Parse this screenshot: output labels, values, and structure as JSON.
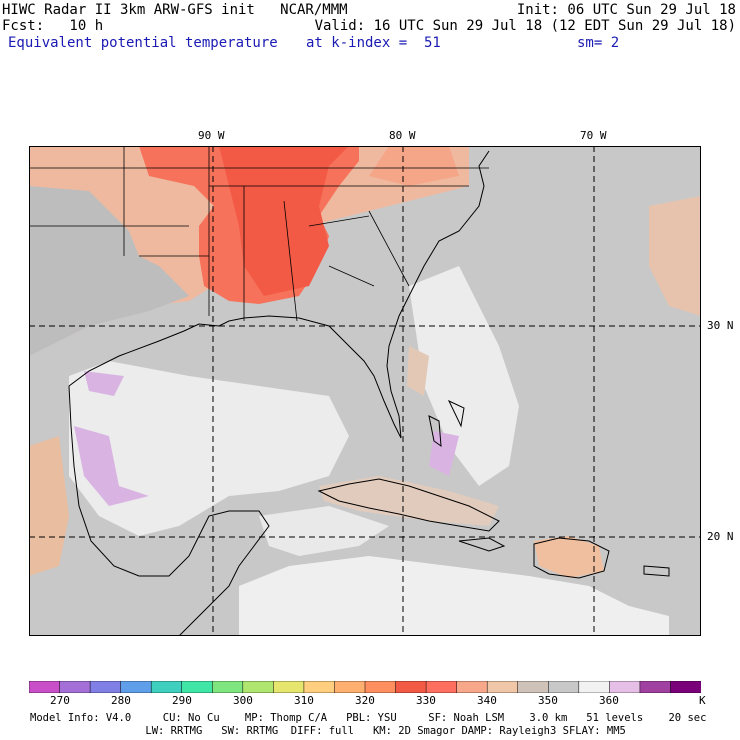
{
  "header": {
    "line1_left": "HIWC Radar II 3km ARW-GFS init   NCAR/MMM",
    "line1_right": "Init: 06 UTC Sun 29 Jul 18",
    "line2_left": "Fcst:   10 h",
    "line2_right": "Valid: 16 UTC Sun 29 Jul 18 (12 EDT Sun 29 Jul 18)",
    "line3_left": "Equivalent potential temperature",
    "line3_mid": "at k-index =  51",
    "line3_right": "sm= 2"
  },
  "map": {
    "lon_labels": [
      "90 W",
      "80 W",
      "70 W"
    ],
    "lat_labels": [
      "30 N",
      "20 N"
    ]
  },
  "colorbar": {
    "colors": [
      "#c94fc9",
      "#a46fd6",
      "#7f7fe6",
      "#5f9fea",
      "#3fcfbf",
      "#3fe6a6",
      "#7fe67f",
      "#afe66f",
      "#e6e66f",
      "#ffcf7f",
      "#ffaf6f",
      "#ff8f5f",
      "#f25a46",
      "#ff6f5f",
      "#f7a88a",
      "#efc6a8",
      "#cfc2b8",
      "#c8c8c8",
      "#f2f2f2",
      "#e6bfe6",
      "#a040a0",
      "#7a007a"
    ],
    "labels": [
      "270",
      "280",
      "290",
      "300",
      "310",
      "320",
      "330",
      "340",
      "350",
      "360",
      "K"
    ],
    "colors_meaning": {
      "cool": "#c94fc9",
      "warm": "#f25a46",
      "background_ocean": "#c8c8c8",
      "light_ocean": "#efefef",
      "lavender": "#dab6e6"
    }
  },
  "footer": {
    "line1": "Model Info: V4.0     CU: No Cu    MP: Thomp C/A   PBL: YSU     SF: Noah LSM    3.0 km   51 levels    20 sec",
    "line2": "                       LW: RRTMG   SW: RRTMG  DIFF: full   KM: 2D Smagor DAMP: Rayleigh3 SFLAY: MM5"
  }
}
